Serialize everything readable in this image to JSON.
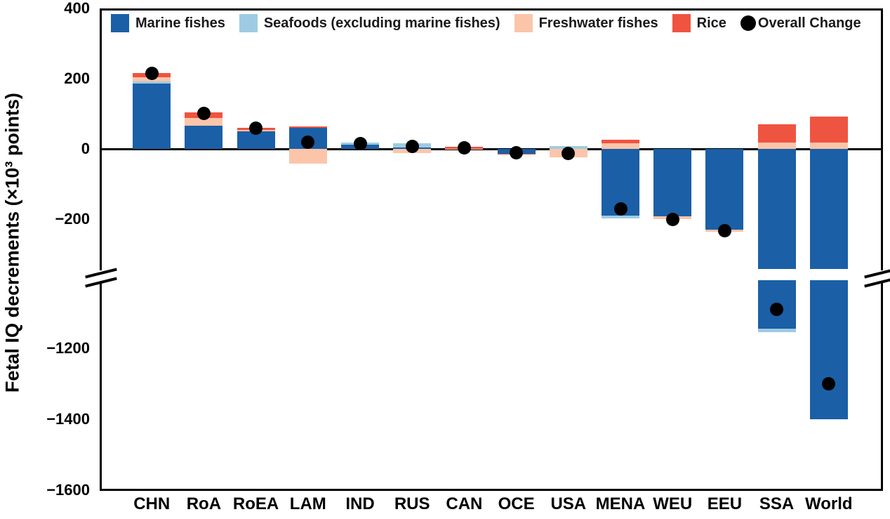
{
  "chart_data": {
    "type": "bar",
    "stacked": true,
    "title": "",
    "xlabel": "",
    "ylabel": "Fetal IQ decrements (×10³ points)",
    "units": "×10³ IQ points",
    "grid": false,
    "legend_position": "top-inside",
    "categories": [
      "CHN",
      "RoA",
      "RoEA",
      "LAM",
      "IND",
      "RUS",
      "CAN",
      "OCE",
      "USA",
      "MENA",
      "WEU",
      "EEU",
      "SSA",
      "World"
    ],
    "series": [
      {
        "name": "Marine fishes",
        "color": "#1b5fa6",
        "values": [
          187,
          67,
          51,
          61,
          12,
          5,
          0,
          -13,
          0,
          -189,
          -192,
          -229,
          -1144,
          -1400
        ]
      },
      {
        "name": "Seafoods (excluding marine fishes)",
        "color": "#9fcbe2",
        "values": [
          5,
          0,
          0,
          0,
          6,
          12,
          0,
          0,
          8,
          -8,
          0,
          0,
          -11,
          0
        ]
      },
      {
        "name": "Freshwater fishes",
        "color": "#fbc5aa",
        "values": [
          12,
          22,
          3,
          -42,
          0,
          -12,
          -2,
          0,
          -24,
          16,
          -8,
          -7,
          19,
          19
        ]
      },
      {
        "name": "Rice",
        "color": "#ef5440",
        "values": [
          12,
          16,
          7,
          3,
          0,
          0,
          6,
          -2,
          0,
          10,
          0,
          0,
          51,
          74
        ]
      }
    ],
    "overall_change": {
      "name": "Overall Change",
      "color": "#000000",
      "values": [
        216,
        101,
        60,
        19,
        16,
        8,
        3,
        -11,
        -13,
        -170,
        -200,
        -232,
        -1090,
        -1300
      ]
    },
    "axis": {
      "y_upper_ticks": [
        400,
        200,
        0,
        -200
      ],
      "y_lower_ticks": [
        -1200,
        -1400,
        -1600
      ],
      "y_break_between": [
        -342,
        -1008
      ],
      "ylim_upper": [
        -342,
        400
      ],
      "ylim_lower": [
        -1600,
        -1008
      ],
      "broken_axis": true
    }
  }
}
